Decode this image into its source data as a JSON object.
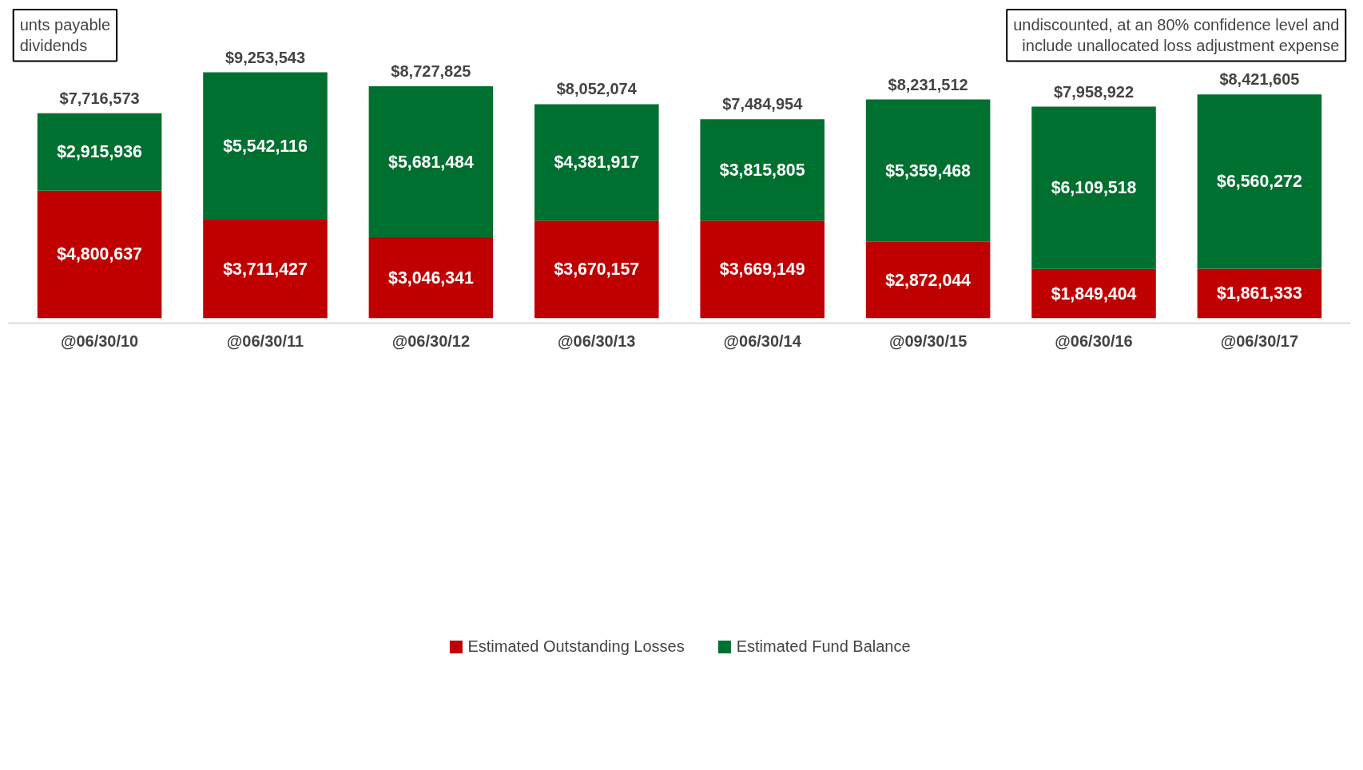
{
  "chart_data": {
    "type": "bar",
    "stacked": true,
    "categories": [
      "@06/30/10",
      "@06/30/11",
      "@06/30/12",
      "@06/30/13",
      "@06/30/14",
      "@09/30/15",
      "@06/30/16",
      "@06/30/17"
    ],
    "series": [
      {
        "name": "Estimated Outstanding Losses",
        "color": "#c00000",
        "values": [
          4800637,
          3711427,
          3046341,
          3670157,
          3669149,
          2872044,
          1849404,
          1861333
        ],
        "value_labels": [
          "$4,800,637",
          "$3,711,427",
          "$3,046,341",
          "$3,670,157",
          "$3,669,149",
          "$2,872,044",
          "$1,849,404",
          "$1,861,333"
        ]
      },
      {
        "name": "Estimated Fund Balance",
        "color": "#007030",
        "values": [
          2915936,
          5542116,
          5681484,
          4381917,
          3815805,
          5359468,
          6109518,
          6560272
        ],
        "value_labels": [
          "$2,915,936",
          "$5,542,116",
          "$5,681,484",
          "$4,381,917",
          "$3,815,805",
          "$5,359,468",
          "$6,109,518",
          "$6,560,272"
        ]
      }
    ],
    "totals": [
      "$7,716,573",
      "$9,253,543",
      "$8,727,825",
      "$8,052,074",
      "$7,484,954",
      "$8,231,512",
      "$7,958,922",
      "$8,421,605"
    ],
    "legend": "bottom",
    "grid": false,
    "annotations": [
      "unts payable\ndividends",
      "undiscounted, at an 80% confidence level and\ninclude unallocated loss adjustment expense"
    ]
  }
}
